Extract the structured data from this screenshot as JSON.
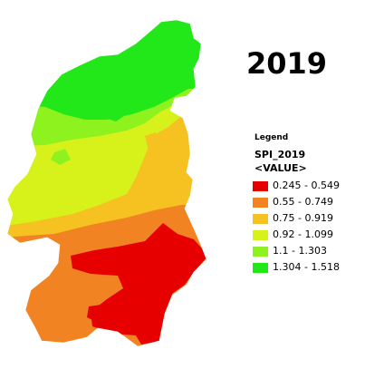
{
  "map": {
    "year_title": "2019",
    "legend": {
      "heading": "Legend",
      "field": "SPI_2019",
      "value_label": "<VALUE>",
      "classes": [
        {
          "label": "0.245 - 0.549",
          "color": "#e60000"
        },
        {
          "label": "0.55 - 0.749",
          "color": "#f28322"
        },
        {
          "label": "0.75 - 0.919",
          "color": "#f5c222"
        },
        {
          "label": "0.92 - 1.099",
          "color": "#d7f21b"
        },
        {
          "label": "1.1 - 1.303",
          "color": "#8ef21f"
        },
        {
          "label": "1.304 - 1.518",
          "color": "#22e81a"
        }
      ]
    }
  }
}
